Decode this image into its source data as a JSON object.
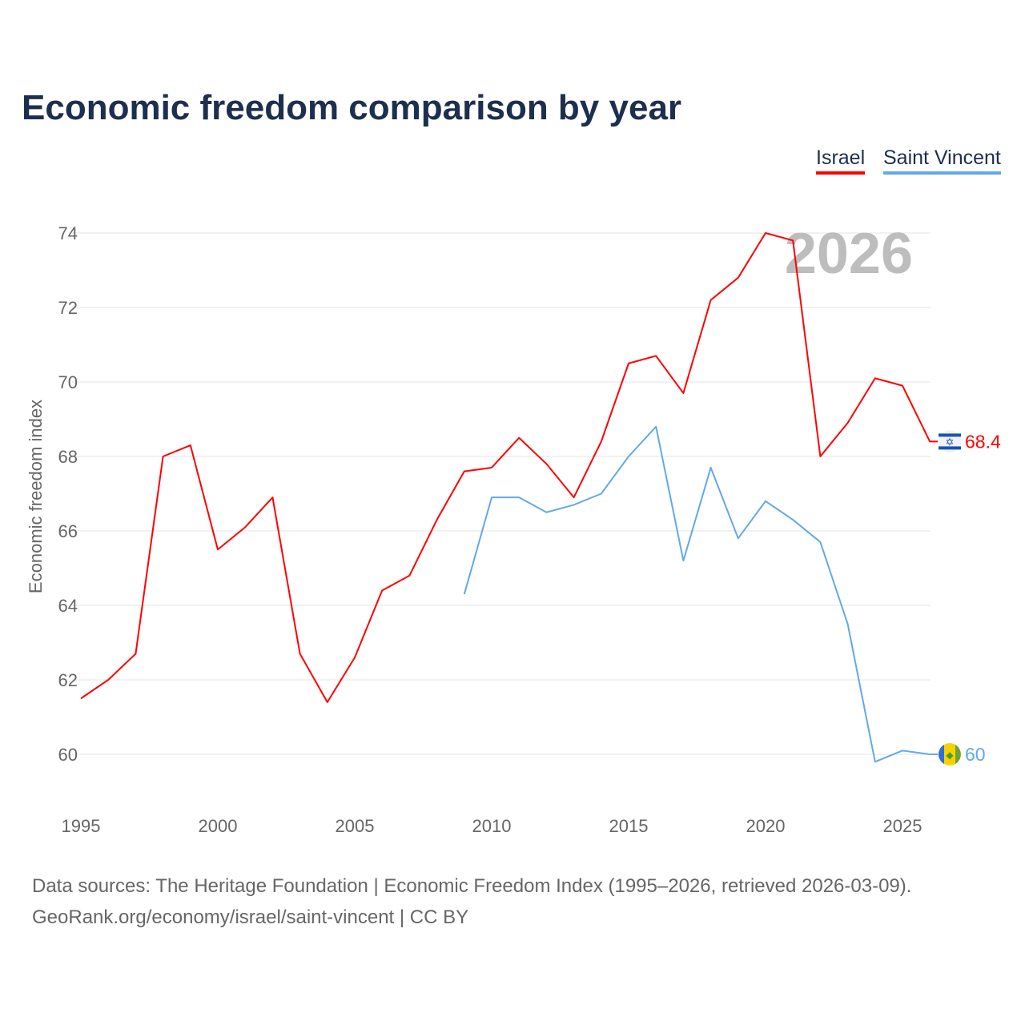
{
  "chart_data": {
    "type": "line",
    "title": "Economic freedom comparison by year",
    "ylabel": "Economic freedom index",
    "xlabel": "",
    "xlim": [
      1995,
      2026
    ],
    "ylim": [
      59,
      75
    ],
    "yticks": [
      60,
      62,
      64,
      66,
      68,
      70,
      72,
      74
    ],
    "xticks": [
      1995,
      2000,
      2005,
      2010,
      2015,
      2020,
      2025
    ],
    "grid": true,
    "legend_position": "top-right",
    "year_watermark": "2026",
    "series": [
      {
        "name": "Israel",
        "color": "#ff0000",
        "end_label": "68.4",
        "flag": "israel-flag",
        "x": [
          1995,
          1996,
          1997,
          1998,
          1999,
          2000,
          2001,
          2002,
          2003,
          2004,
          2005,
          2006,
          2007,
          2008,
          2009,
          2010,
          2011,
          2012,
          2013,
          2014,
          2015,
          2016,
          2017,
          2018,
          2019,
          2020,
          2021,
          2022,
          2023,
          2024,
          2025,
          2026
        ],
        "values": [
          61.5,
          62.0,
          62.7,
          68.0,
          68.3,
          65.5,
          66.1,
          66.9,
          62.7,
          61.4,
          62.6,
          64.4,
          64.8,
          66.3,
          67.6,
          67.7,
          68.5,
          67.8,
          66.9,
          68.4,
          70.5,
          70.7,
          69.7,
          72.2,
          72.8,
          74.0,
          73.8,
          68.0,
          68.9,
          70.1,
          69.9,
          68.4
        ]
      },
      {
        "name": "Saint Vincent",
        "color": "#62a8ea",
        "end_label": "60",
        "flag": "saint-vincent-flag",
        "x": [
          2009,
          2010,
          2011,
          2012,
          2013,
          2014,
          2015,
          2016,
          2017,
          2018,
          2019,
          2020,
          2021,
          2022,
          2023,
          2024,
          2025,
          2026
        ],
        "values": [
          64.3,
          66.9,
          66.9,
          66.5,
          66.7,
          67.0,
          68.0,
          68.8,
          65.2,
          67.7,
          65.8,
          66.8,
          66.3,
          65.7,
          63.5,
          59.8,
          60.1,
          60.0
        ]
      }
    ]
  },
  "footer": {
    "line1": "Data sources: The Heritage Foundation | Economic Freedom Index (1995–2026, retrieved 2026-03-09).",
    "line2": "GeoRank.org/economy/israel/saint-vincent | CC BY"
  }
}
